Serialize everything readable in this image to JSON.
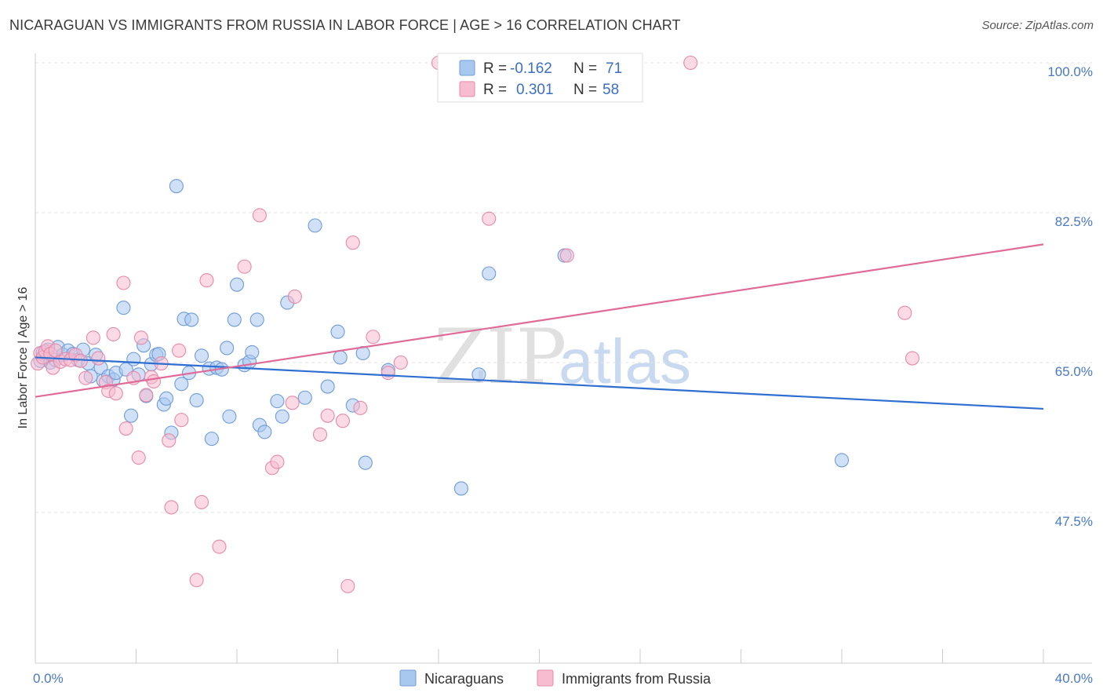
{
  "title": "NICARAGUAN VS IMMIGRANTS FROM RUSSIA IN LABOR FORCE | AGE > 16 CORRELATION CHART",
  "source": "Source: ZipAtlas.com",
  "watermark": {
    "left": "ZIP",
    "right": "atlas"
  },
  "legend": {
    "rows": [
      {
        "r_label": "R =",
        "r_value": "-0.162",
        "n_label": "N =",
        "n_value": "71",
        "color": "#a9c8f0",
        "stroke": "#6f9bd8"
      },
      {
        "r_label": "R =",
        "r_value": "0.301",
        "n_label": "N =",
        "n_value": "58",
        "color": "#f7bcd0",
        "stroke": "#e48aaa"
      }
    ]
  },
  "bottom_legend": [
    {
      "label": "Nicaraguans",
      "color": "#a9c8f0",
      "stroke": "#6f9bd8"
    },
    {
      "label": "Immigrants from Russia",
      "color": "#f7bcd0",
      "stroke": "#e48aaa"
    }
  ],
  "chart_data": {
    "type": "scatter",
    "title": "NICARAGUAN VS IMMIGRANTS FROM RUSSIA IN LABOR FORCE | AGE > 16 CORRELATION CHART",
    "xlabel": "",
    "ylabel": "In Labor Force | Age > 16",
    "xlim": [
      0,
      40
    ],
    "ylim": [
      30,
      100
    ],
    "x_tick_labels": [
      {
        "value": 0,
        "label": "0.0%"
      },
      {
        "value": 40,
        "label": "40.0%"
      }
    ],
    "y_tick_labels": [
      {
        "value": 100,
        "label": "100.0%"
      },
      {
        "value": 82.5,
        "label": "82.5%"
      },
      {
        "value": 65,
        "label": "65.0%"
      },
      {
        "value": 47.5,
        "label": "47.5%"
      }
    ],
    "grid": true,
    "legend_position": "top-center",
    "series": [
      {
        "name": "Nicaraguans",
        "color": "#6f9bd8",
        "fill": "#a9c8f0",
        "trend": {
          "x": [
            0,
            40
          ],
          "y": [
            65.6,
            59.6
          ]
        },
        "points": [
          [
            0.2,
            65.2
          ],
          [
            0.3,
            66.2
          ],
          [
            0.4,
            65.8
          ],
          [
            0.5,
            66.5
          ],
          [
            0.6,
            65.0
          ],
          [
            0.8,
            65.3
          ],
          [
            0.9,
            66.8
          ],
          [
            1.1,
            65.9
          ],
          [
            1.3,
            66.4
          ],
          [
            1.5,
            66.0
          ],
          [
            1.7,
            65.3
          ],
          [
            1.9,
            66.5
          ],
          [
            2.1,
            64.9
          ],
          [
            2.2,
            63.4
          ],
          [
            2.4,
            65.9
          ],
          [
            2.6,
            64.4
          ],
          [
            2.7,
            62.9
          ],
          [
            2.9,
            63.4
          ],
          [
            3.1,
            63.0
          ],
          [
            3.2,
            63.8
          ],
          [
            3.5,
            71.4
          ],
          [
            3.6,
            64.2
          ],
          [
            3.8,
            58.8
          ],
          [
            3.9,
            65.4
          ],
          [
            4.1,
            63.6
          ],
          [
            4.3,
            67.0
          ],
          [
            4.4,
            61.1
          ],
          [
            4.6,
            64.8
          ],
          [
            4.8,
            65.9
          ],
          [
            4.9,
            66.0
          ],
          [
            5.1,
            60.1
          ],
          [
            5.2,
            60.8
          ],
          [
            5.4,
            56.8
          ],
          [
            5.6,
            85.6
          ],
          [
            5.8,
            62.5
          ],
          [
            5.9,
            70.1
          ],
          [
            6.1,
            63.8
          ],
          [
            6.2,
            70.0
          ],
          [
            6.4,
            60.6
          ],
          [
            6.6,
            65.8
          ],
          [
            6.9,
            64.3
          ],
          [
            7.0,
            56.1
          ],
          [
            7.2,
            64.4
          ],
          [
            7.4,
            64.2
          ],
          [
            7.6,
            66.7
          ],
          [
            7.7,
            58.7
          ],
          [
            7.9,
            70.0
          ],
          [
            8.0,
            74.1
          ],
          [
            8.3,
            64.7
          ],
          [
            8.5,
            65.1
          ],
          [
            8.6,
            66.2
          ],
          [
            8.8,
            70.0
          ],
          [
            8.9,
            57.7
          ],
          [
            9.1,
            56.9
          ],
          [
            9.6,
            60.5
          ],
          [
            9.8,
            58.7
          ],
          [
            10.0,
            72.0
          ],
          [
            10.7,
            60.9
          ],
          [
            11.1,
            81.0
          ],
          [
            11.6,
            62.2
          ],
          [
            12.0,
            68.6
          ],
          [
            12.1,
            65.6
          ],
          [
            12.6,
            60.0
          ],
          [
            13.0,
            66.1
          ],
          [
            13.1,
            53.3
          ],
          [
            14.0,
            64.1
          ],
          [
            16.9,
            50.3
          ],
          [
            17.6,
            63.6
          ],
          [
            18.0,
            75.4
          ],
          [
            21.0,
            77.5
          ],
          [
            32.0,
            53.6
          ]
        ]
      },
      {
        "name": "Immigrants from Russia",
        "color": "#e48aaa",
        "fill": "#f7bcd0",
        "trend": {
          "x": [
            0,
            40
          ],
          "y": [
            61.0,
            78.8
          ]
        },
        "points": [
          [
            0.1,
            64.9
          ],
          [
            0.2,
            66.1
          ],
          [
            0.3,
            65.6
          ],
          [
            0.4,
            66.3
          ],
          [
            0.5,
            66.9
          ],
          [
            0.6,
            66.0
          ],
          [
            0.7,
            64.4
          ],
          [
            0.8,
            66.4
          ],
          [
            1.0,
            65.1
          ],
          [
            1.2,
            65.4
          ],
          [
            1.4,
            65.3
          ],
          [
            1.6,
            65.9
          ],
          [
            1.8,
            65.2
          ],
          [
            2.0,
            63.2
          ],
          [
            2.3,
            67.9
          ],
          [
            2.5,
            65.5
          ],
          [
            2.8,
            62.7
          ],
          [
            2.9,
            61.7
          ],
          [
            3.1,
            68.3
          ],
          [
            3.2,
            61.4
          ],
          [
            3.5,
            74.3
          ],
          [
            3.6,
            57.3
          ],
          [
            3.9,
            63.2
          ],
          [
            4.1,
            53.9
          ],
          [
            4.2,
            67.9
          ],
          [
            4.4,
            61.2
          ],
          [
            4.6,
            63.3
          ],
          [
            4.7,
            62.8
          ],
          [
            5.0,
            64.9
          ],
          [
            5.3,
            55.9
          ],
          [
            5.4,
            48.1
          ],
          [
            5.7,
            66.4
          ],
          [
            5.8,
            58.3
          ],
          [
            6.4,
            39.6
          ],
          [
            6.6,
            48.7
          ],
          [
            6.8,
            74.6
          ],
          [
            7.3,
            43.5
          ],
          [
            8.3,
            76.2
          ],
          [
            8.9,
            82.2
          ],
          [
            9.4,
            52.7
          ],
          [
            9.6,
            53.4
          ],
          [
            10.2,
            60.3
          ],
          [
            10.3,
            72.7
          ],
          [
            11.3,
            56.6
          ],
          [
            11.6,
            58.8
          ],
          [
            12.2,
            58.2
          ],
          [
            12.4,
            38.9
          ],
          [
            12.6,
            79.0
          ],
          [
            12.9,
            59.7
          ],
          [
            13.4,
            68.0
          ],
          [
            14.0,
            63.8
          ],
          [
            14.5,
            65.0
          ],
          [
            16.0,
            100.0
          ],
          [
            18.0,
            81.8
          ],
          [
            21.1,
            77.5
          ],
          [
            26.0,
            100.0
          ],
          [
            34.5,
            70.8
          ],
          [
            34.8,
            65.5
          ]
        ]
      }
    ]
  }
}
